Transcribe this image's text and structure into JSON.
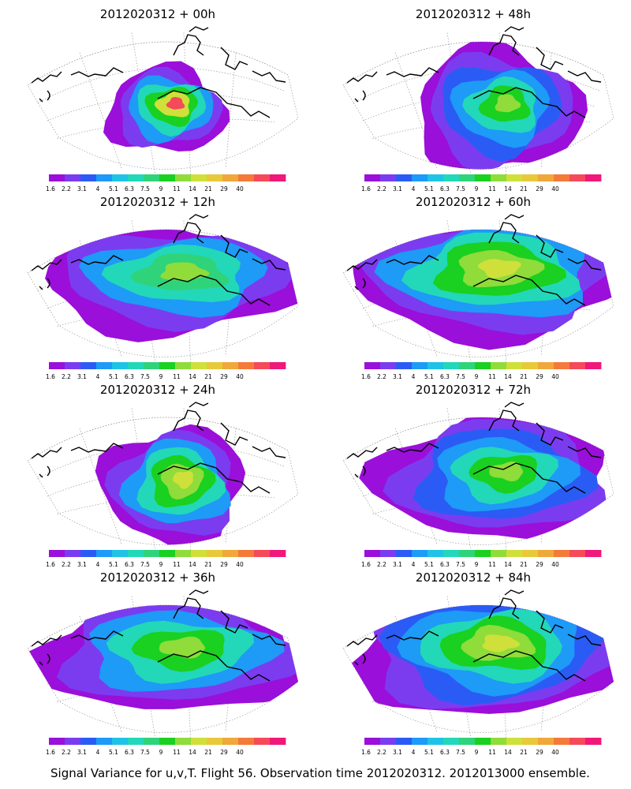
{
  "footer": "Signal Variance for u,v,T. Flight 56. Observation time 2012020312. 2012013000 ensemble.",
  "colorbar": {
    "labels": [
      "1.6",
      "2.2",
      "3.1",
      "4",
      "5.1",
      "6.3",
      "7.5",
      "9",
      "11",
      "14",
      "21",
      "29",
      "40"
    ],
    "colors": [
      "#9a0fd9",
      "#7b3cf0",
      "#2a5cf5",
      "#1e9af7",
      "#1fc3e6",
      "#22d8b8",
      "#2fd37a",
      "#1ad020",
      "#8fdc3a",
      "#cfe03a",
      "#e8c93a",
      "#f0a83a",
      "#f47a3a",
      "#f54a5a",
      "#f0187a"
    ]
  },
  "panels": [
    {
      "title": "2012020312 + 00h",
      "level": 0
    },
    {
      "title": "2012020312 + 48h",
      "level": 4
    },
    {
      "title": "2012020312 + 12h",
      "level": 1
    },
    {
      "title": "2012020312 + 60h",
      "level": 5
    },
    {
      "title": "2012020312 + 24h",
      "level": 2
    },
    {
      "title": "2012020312 + 72h",
      "level": 6
    },
    {
      "title": "2012020312 + 36h",
      "level": 3
    },
    {
      "title": "2012020312 + 84h",
      "level": 7
    }
  ]
}
